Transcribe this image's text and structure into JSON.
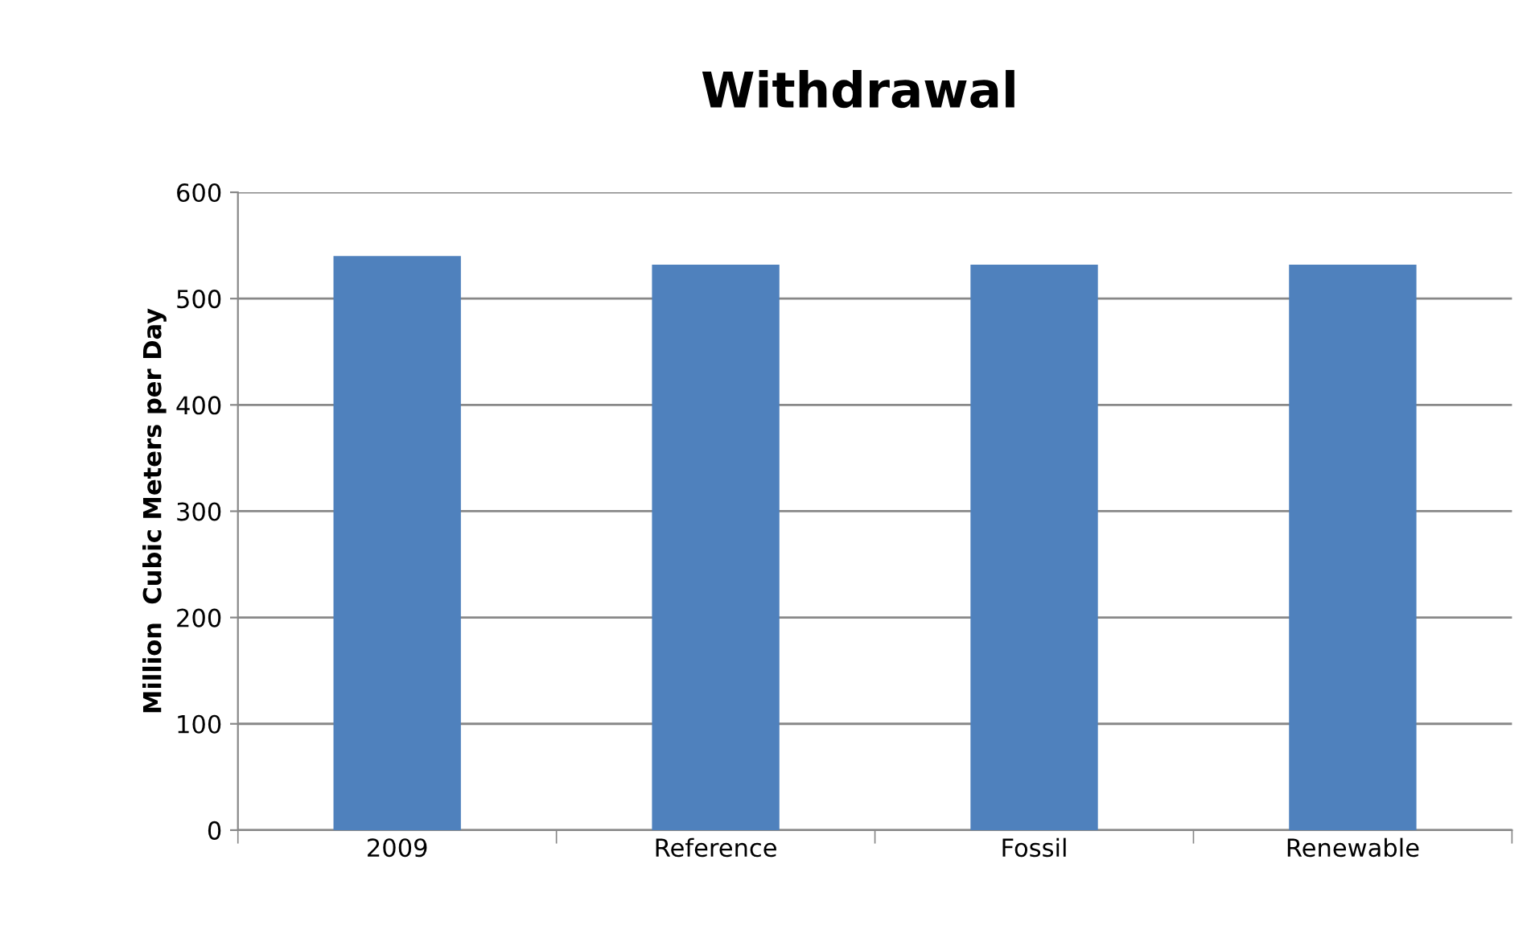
{
  "chart_data": {
    "type": "bar",
    "title": "Withdrawal",
    "ylabel": "Million  Cubic Meters per Day",
    "categories": [
      "2009",
      "Reference",
      "Fossil",
      "Renewable"
    ],
    "values": [
      540,
      532,
      532,
      532
    ],
    "color": "#4f81bd",
    "ylim": [
      0,
      600
    ],
    "yticks": [
      0,
      100,
      200,
      300,
      400,
      500,
      600
    ],
    "grid": "y",
    "legend": false
  }
}
